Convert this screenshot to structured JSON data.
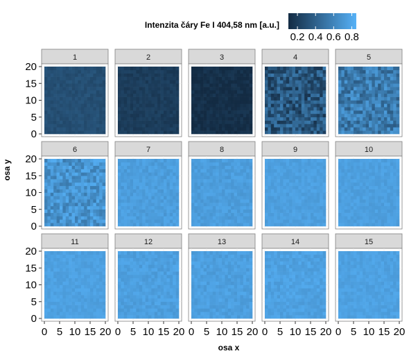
{
  "chart_data": {
    "type": "heatmap",
    "layout": "faceted 3x5 grid",
    "legend": {
      "title": "Intenzita čáry Fe I 404,58 nm [a.u.]",
      "placement": "top",
      "ticks": [
        "0.2",
        "0.4",
        "0.6",
        "0.8"
      ],
      "tick_values": [
        0.2,
        0.4,
        0.6,
        0.8
      ],
      "range": [
        0.1,
        0.85
      ],
      "color_low": "#132b43",
      "color_high": "#56b1f7"
    },
    "xlabel": "osa x",
    "ylabel": "osa y",
    "xlim": [
      0,
      20
    ],
    "ylim": [
      0,
      20
    ],
    "xticks": [
      "0",
      "5",
      "10",
      "15",
      "20"
    ],
    "yticks": [
      "0",
      "5",
      "10",
      "15",
      "20"
    ],
    "grid_size": 20,
    "strip_color": "#d9d9d9",
    "facets": [
      {
        "label": "1",
        "mean_value": 0.3,
        "variation": 0.04
      },
      {
        "label": "2",
        "mean_value": 0.2,
        "variation": 0.04
      },
      {
        "label": "3",
        "mean_value": 0.12,
        "variation": 0.05
      },
      {
        "label": "4",
        "mean_value": 0.35,
        "variation": 0.2
      },
      {
        "label": "5",
        "mean_value": 0.55,
        "variation": 0.18
      },
      {
        "label": "6",
        "mean_value": 0.68,
        "variation": 0.14
      },
      {
        "label": "7",
        "mean_value": 0.74,
        "variation": 0.05
      },
      {
        "label": "8",
        "mean_value": 0.74,
        "variation": 0.05
      },
      {
        "label": "9",
        "mean_value": 0.75,
        "variation": 0.04
      },
      {
        "label": "10",
        "mean_value": 0.75,
        "variation": 0.04
      },
      {
        "label": "11",
        "mean_value": 0.76,
        "variation": 0.04
      },
      {
        "label": "12",
        "mean_value": 0.75,
        "variation": 0.05
      },
      {
        "label": "13",
        "mean_value": 0.75,
        "variation": 0.05
      },
      {
        "label": "14",
        "mean_value": 0.76,
        "variation": 0.05
      },
      {
        "label": "15",
        "mean_value": 0.76,
        "variation": 0.04
      }
    ]
  }
}
